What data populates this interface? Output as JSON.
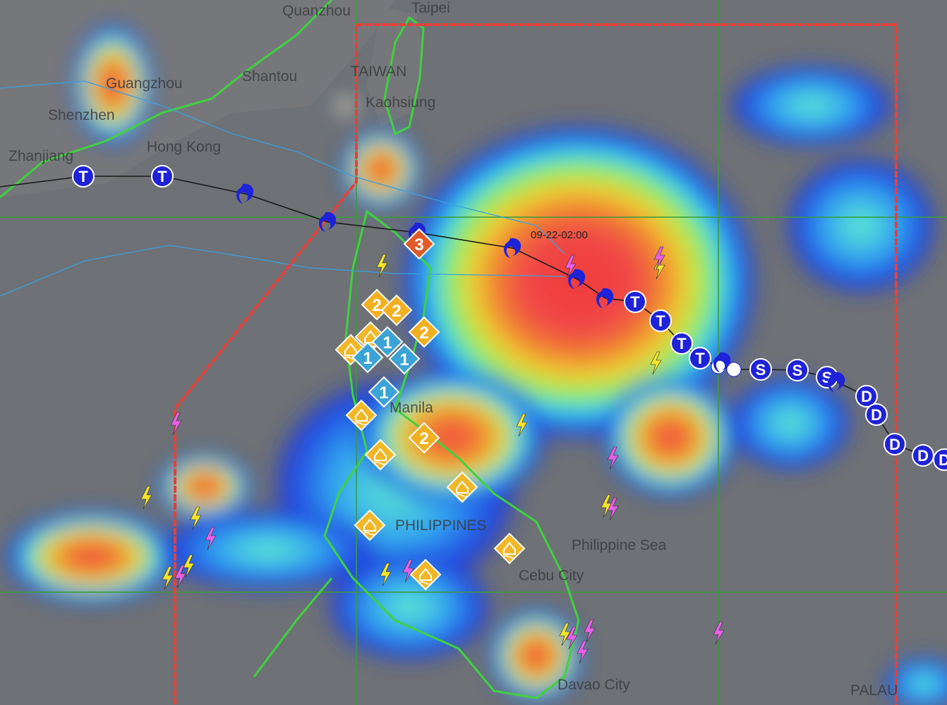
{
  "map": {
    "timestamp_label": "09-22-02:00",
    "place_labels": [
      "Quanzhou",
      "Taipei",
      "Shantou",
      "Guangzhou",
      "TAIWAN",
      "Kaohsiung",
      "Shenzhen",
      "Hong Kong",
      "Zhanjiang",
      "Manila",
      "PHILIPPINES",
      "Philippine Sea",
      "Cebu City",
      "Davao City",
      "PALAU"
    ],
    "track_markers": [
      "T",
      "T",
      "cyclone",
      "cyclone",
      "cyclone",
      "cyclone",
      "cyclone",
      "cyclone",
      "T",
      "T",
      "T",
      "T",
      "dot",
      "dot",
      "cyclone",
      "S",
      "S",
      "S",
      "cyclone",
      "D",
      "D",
      "D",
      "D",
      "D"
    ],
    "warning_levels": [
      "3",
      "2",
      "2",
      "2",
      "2",
      "1",
      "1",
      "1",
      "1"
    ],
    "flood_warning_count": 8,
    "lightning_colors": {
      "yellow": "#f4e42a",
      "pink": "#e860e8"
    },
    "colors": {
      "par_boundary": "#e8403a",
      "track": "#1a1a1a",
      "track_marker": "#1e22d8",
      "coastline": "#3fd23f",
      "grid": "#3c9a3c",
      "level1": "#3ba3d6",
      "level2": "#f2b020",
      "level3": "#e05a2a",
      "flood": "#f2b727"
    }
  }
}
